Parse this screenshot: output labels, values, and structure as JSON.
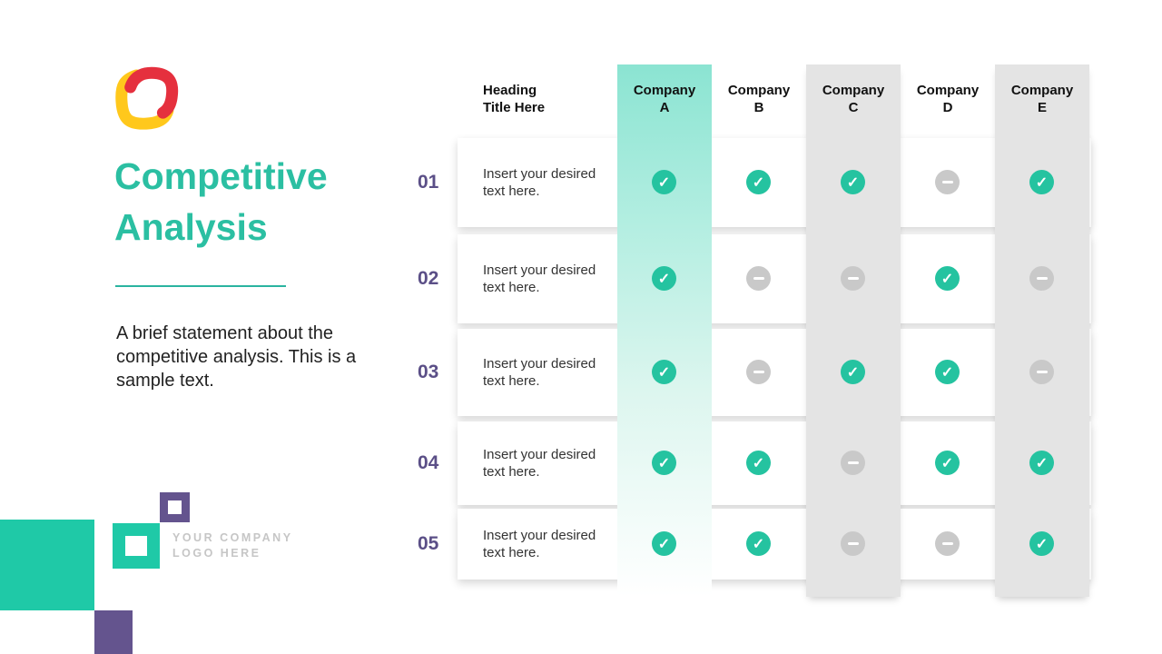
{
  "slide": {
    "header": {
      "title": "Competitive Analysis"
    },
    "intro": {
      "text": "A brief statement about the competitive analysis. This is a sample text."
    },
    "footer": {
      "company_logo_line1": "YOUR COMPANY",
      "company_logo_line2": "LOGO HERE"
    },
    "colors": {
      "accent_teal": "#2BBFA2",
      "deco_teal": "#1FC9A7",
      "deco_purple": "#64548E",
      "row_number_purple": "#5B4F87",
      "band_teal_top": "#8BE4D2",
      "band_gray": "#E4E4E4",
      "check_green": "#25C3A0",
      "dash_gray": "#C9C9C9",
      "logo_red": "#E5303E",
      "logo_yellow": "#FFC81C"
    }
  },
  "table": {
    "heading": "Heading Title Here",
    "companies": [
      "Company A",
      "Company B",
      "Company C",
      "Company D",
      "Company E"
    ],
    "row_text": "Insert your desired text here.",
    "rows": [
      {
        "num": "01",
        "text": "Insert your desired text here.",
        "marks": [
          "check",
          "check",
          "check",
          "dash",
          "check"
        ]
      },
      {
        "num": "02",
        "text": "Insert your desired text here.",
        "marks": [
          "check",
          "dash",
          "dash",
          "check",
          "dash"
        ]
      },
      {
        "num": "03",
        "text": "Insert your desired text here.",
        "marks": [
          "check",
          "dash",
          "check",
          "check",
          "dash"
        ]
      },
      {
        "num": "04",
        "text": "Insert your desired text here.",
        "marks": [
          "check",
          "check",
          "dash",
          "check",
          "check"
        ]
      },
      {
        "num": "05",
        "text": "Insert your desired text here.",
        "marks": [
          "check",
          "check",
          "dash",
          "dash",
          "check"
        ]
      }
    ]
  }
}
